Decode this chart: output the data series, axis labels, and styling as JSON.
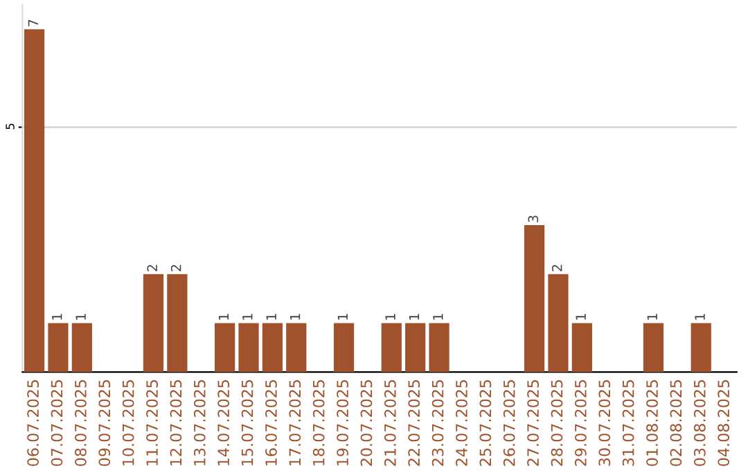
{
  "chart_data": {
    "type": "bar",
    "categories": [
      "06.07.2025",
      "07.07.2025",
      "08.07.2025",
      "09.07.2025",
      "10.07.2025",
      "11.07.2025",
      "12.07.2025",
      "13.07.2025",
      "14.07.2025",
      "15.07.2025",
      "16.07.2025",
      "17.07.2025",
      "18.07.2025",
      "19.07.2025",
      "20.07.2025",
      "21.07.2025",
      "22.07.2025",
      "23.07.2025",
      "24.07.2025",
      "25.07.2025",
      "26.07.2025",
      "27.07.2025",
      "28.07.2025",
      "29.07.2025",
      "30.07.2025",
      "31.07.2025",
      "01.08.2025",
      "02.08.2025",
      "03.08.2025",
      "04.08.2025"
    ],
    "values": [
      7,
      1,
      1,
      0,
      0,
      2,
      2,
      0,
      1,
      1,
      1,
      1,
      0,
      1,
      0,
      1,
      1,
      1,
      0,
      0,
      0,
      3,
      2,
      1,
      0,
      0,
      1,
      0,
      1,
      0
    ],
    "value_labels": [
      "7",
      "1",
      "1",
      null,
      null,
      "2",
      "2",
      null,
      "1",
      "1",
      "1",
      "1",
      null,
      "1",
      null,
      "1",
      "1",
      "1",
      null,
      null,
      null,
      "3",
      "2",
      "1",
      null,
      null,
      "1",
      null,
      "1",
      null
    ],
    "color": "#a0522d",
    "ylim": [
      0,
      7.5
    ],
    "yticks": [
      5
    ],
    "grid": "y"
  }
}
